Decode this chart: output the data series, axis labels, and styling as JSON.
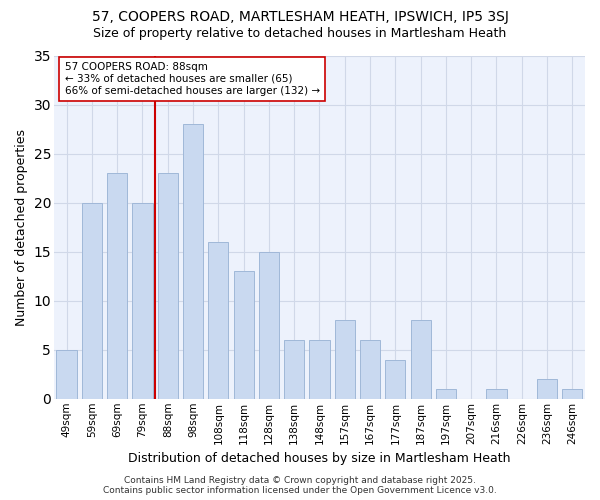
{
  "title1": "57, COOPERS ROAD, MARTLESHAM HEATH, IPSWICH, IP5 3SJ",
  "title2": "Size of property relative to detached houses in Martlesham Heath",
  "xlabel": "Distribution of detached houses by size in Martlesham Heath",
  "ylabel": "Number of detached properties",
  "bar_color": "#c9d9f0",
  "bar_edge_color": "#a0b8d8",
  "categories": [
    "49sqm",
    "59sqm",
    "69sqm",
    "79sqm",
    "88sqm",
    "98sqm",
    "108sqm",
    "118sqm",
    "128sqm",
    "138sqm",
    "148sqm",
    "157sqm",
    "167sqm",
    "177sqm",
    "187sqm",
    "197sqm",
    "207sqm",
    "216sqm",
    "226sqm",
    "236sqm",
    "246sqm"
  ],
  "values": [
    5,
    20,
    23,
    20,
    23,
    28,
    16,
    13,
    15,
    6,
    6,
    8,
    6,
    4,
    8,
    1,
    0,
    1,
    0,
    2,
    1
  ],
  "vline_x": 4,
  "vline_color": "#cc0000",
  "annotation_text": "57 COOPERS ROAD: 88sqm\n← 33% of detached houses are smaller (65)\n66% of semi-detached houses are larger (132) →",
  "annotation_box_color": "#ffffff",
  "annotation_box_edge": "#cc0000",
  "ylim": [
    0,
    35
  ],
  "yticks": [
    0,
    5,
    10,
    15,
    20,
    25,
    30,
    35
  ],
  "footer": "Contains HM Land Registry data © Crown copyright and database right 2025.\nContains public sector information licensed under the Open Government Licence v3.0.",
  "fig_background_color": "#ffffff",
  "plot_background_color": "#edf2fc",
  "grid_color": "#d0d8e8",
  "font_family": "DejaVu Sans",
  "bar_width": 0.8
}
